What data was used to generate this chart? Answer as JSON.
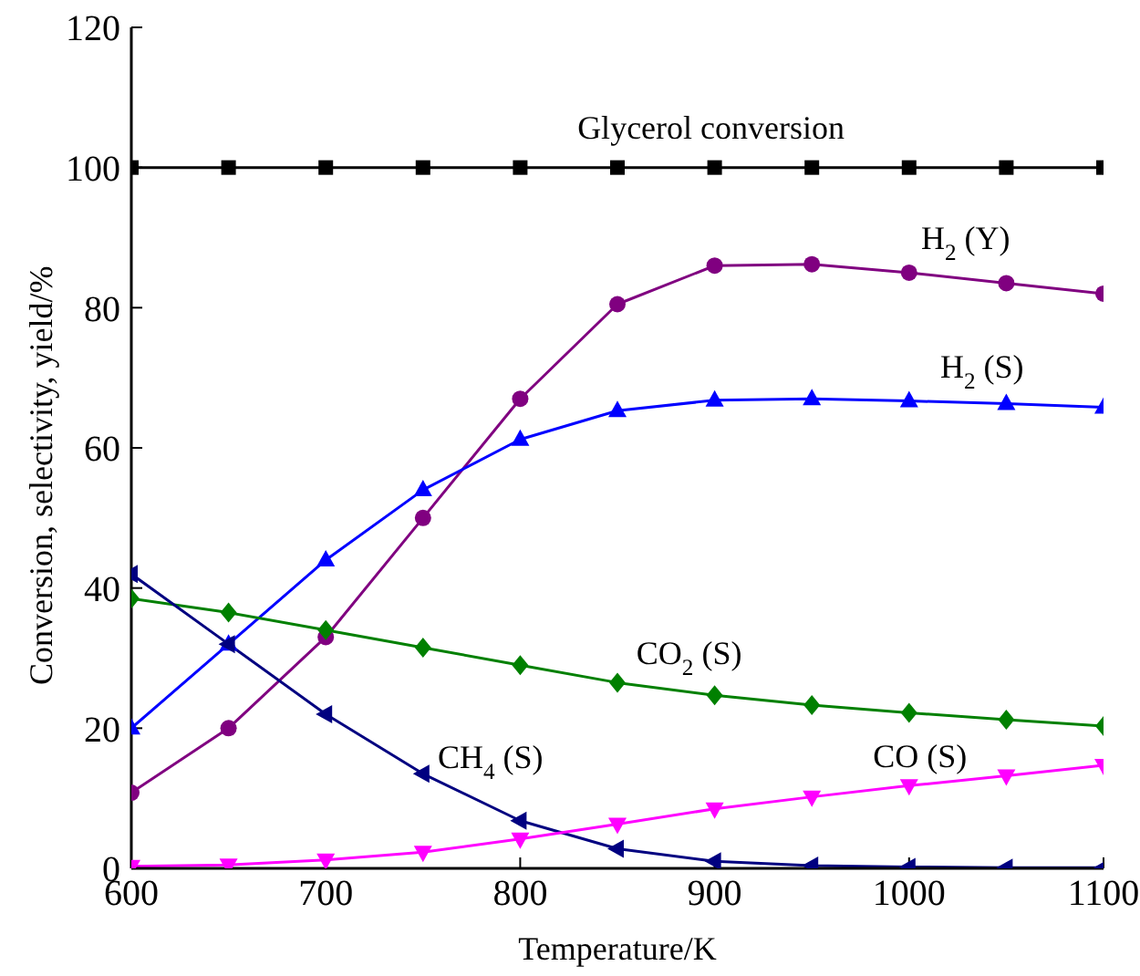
{
  "chart_data": {
    "type": "line",
    "xlabel": "Temperature/K",
    "ylabel": "Conversion, selectivity, yield/%",
    "x": [
      600,
      650,
      700,
      750,
      800,
      850,
      900,
      950,
      1000,
      1050,
      1100
    ],
    "xlim": [
      600,
      1100
    ],
    "xticks": [
      600,
      700,
      800,
      900,
      1000,
      1100
    ],
    "ylim": [
      0,
      120
    ],
    "yticks": [
      0,
      20,
      40,
      60,
      80,
      100,
      120
    ],
    "grid": false,
    "legend": false,
    "series": [
      {
        "name": "Glycerol conversion",
        "color": "#000000",
        "marker": "square",
        "values": [
          100,
          100,
          100,
          100,
          100,
          100,
          100,
          100,
          100,
          100,
          100
        ]
      },
      {
        "name": "H$_{2}$ (Y)",
        "color": "#800080",
        "marker": "circle",
        "values": [
          10.8,
          20,
          33,
          50,
          67,
          80.5,
          86,
          86.2,
          85,
          83.5,
          82
        ]
      },
      {
        "name": "H$_{2}$ (S)",
        "color": "#0000ff",
        "marker": "triangle",
        "values": [
          20,
          32,
          44,
          54,
          61.2,
          65.3,
          66.8,
          67,
          66.7,
          66.3,
          65.8
        ]
      },
      {
        "name": "CO$_{2}$ (S)",
        "color": "#008000",
        "marker": "diamond",
        "values": [
          38.5,
          36.5,
          34,
          31.5,
          29,
          26.5,
          24.7,
          23.3,
          22.2,
          21.2,
          20.3
        ]
      },
      {
        "name": "CH$_{4}$ (S)",
        "color": "#000080",
        "marker": "triangle-left",
        "values": [
          42,
          32,
          22,
          13.5,
          6.8,
          2.8,
          1,
          0.4,
          0.2,
          0.1,
          0.1
        ]
      },
      {
        "name": "CO (S)",
        "color": "#ff00ff",
        "marker": "triangle-down",
        "values": [
          0.3,
          0.5,
          1.2,
          2.3,
          4.2,
          6.3,
          8.5,
          10.2,
          11.8,
          13.2,
          14.7
        ]
      }
    ]
  }
}
